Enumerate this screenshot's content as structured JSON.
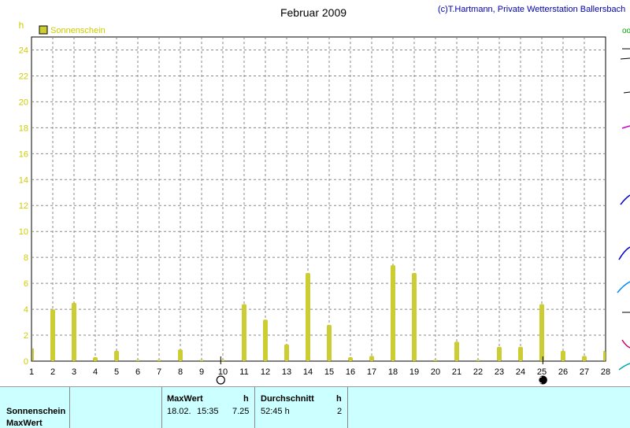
{
  "credit": "(c)T.Hartmann, Private Wetterstation Ballersbach",
  "colors": {
    "series": "#cccc33",
    "axis_text": "#cccc00",
    "grid": "#888888",
    "panel_bg": "#ccffff"
  },
  "moon_phases": [
    {
      "day": 9.9,
      "phase": "full-moon"
    },
    {
      "day": 25.05,
      "phase": "new-moon"
    }
  ],
  "chart_data": {
    "type": "bar",
    "title": "Februar 2009",
    "ylabel": "h",
    "xlabel": "",
    "ylim": [
      0,
      25
    ],
    "yticks": [
      0,
      2,
      4,
      6,
      8,
      10,
      12,
      14,
      16,
      18,
      20,
      22,
      24
    ],
    "xlim": [
      1,
      28
    ],
    "xticks": [
      1,
      2,
      3,
      4,
      5,
      6,
      7,
      8,
      9,
      10,
      11,
      12,
      13,
      14,
      15,
      16,
      17,
      18,
      19,
      20,
      21,
      22,
      23,
      24,
      25,
      26,
      27,
      28
    ],
    "grid": true,
    "legend_position": "top-left",
    "series": [
      {
        "name": "Sonnenschein",
        "x": [
          1,
          2,
          3,
          4,
          5,
          6,
          7,
          8,
          9,
          10,
          11,
          12,
          13,
          14,
          15,
          16,
          17,
          18,
          19,
          20,
          21,
          22,
          23,
          24,
          25,
          26,
          27,
          28
        ],
        "values": [
          1.0,
          4.0,
          4.5,
          0.3,
          0.8,
          0.1,
          0.1,
          0.9,
          0.1,
          0.1,
          4.4,
          3.2,
          1.3,
          6.8,
          2.8,
          0.3,
          0.4,
          7.4,
          6.8,
          0.1,
          1.5,
          0.1,
          1.1,
          1.1,
          4.4,
          0.8,
          0.4,
          0.8
        ]
      }
    ]
  },
  "table": {
    "row_labels": [
      "Sonnenschein",
      "MaxWert"
    ],
    "max_header": "MaxWert",
    "max_unit": "h",
    "max_date": "18.02.",
    "max_time": "15:35",
    "max_value": "7.25",
    "avg_header": "Durchschnitt",
    "avg_unit": "h",
    "avg_value": "52:45 h",
    "avg_count": "2"
  }
}
